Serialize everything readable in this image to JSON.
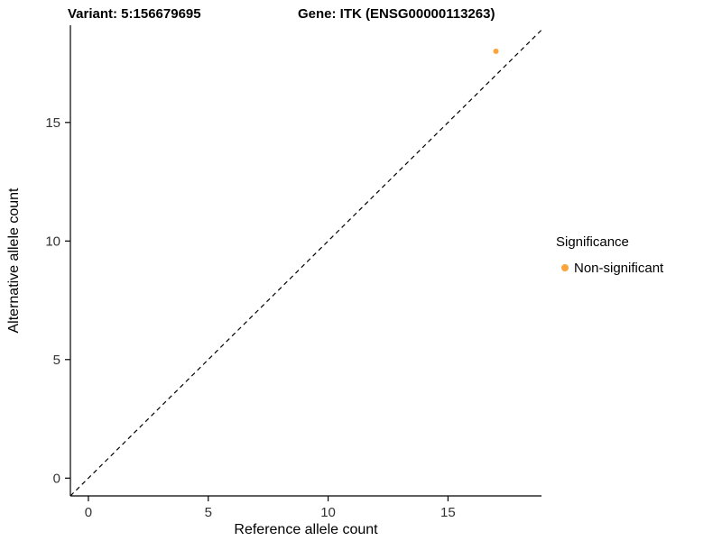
{
  "titles": {
    "left": "Variant: 5:156679695",
    "right": "Gene: ITK (ENSG00000113263)"
  },
  "chart_data": {
    "type": "scatter",
    "title": "Variant: 5:156679695  /  Gene: ITK (ENSG00000113263)",
    "xlabel": "Reference allele count",
    "ylabel": "Alternative allele count",
    "xlim": [
      -0.75,
      18.9
    ],
    "ylim": [
      -0.75,
      19.1
    ],
    "xticks": [
      0,
      5,
      10,
      15
    ],
    "yticks": [
      0,
      5,
      10,
      15
    ],
    "grid": false,
    "identity_line": {
      "type": "dashed",
      "color": "#000000",
      "from": [
        -0.75,
        -0.75
      ],
      "to": [
        18.9,
        18.9
      ]
    },
    "series": [
      {
        "name": "Non-significant",
        "color": "#FAA43A",
        "points": [
          {
            "x": 17,
            "y": 18
          }
        ]
      }
    ],
    "point_radius": 3,
    "legend": {
      "title": "Significance",
      "position": "right",
      "entries": [
        {
          "label": "Non-significant",
          "color": "#FAA43A"
        }
      ]
    },
    "colors": {
      "axis": "#000000",
      "tick_text": "#333333",
      "background": "#ffffff"
    }
  }
}
